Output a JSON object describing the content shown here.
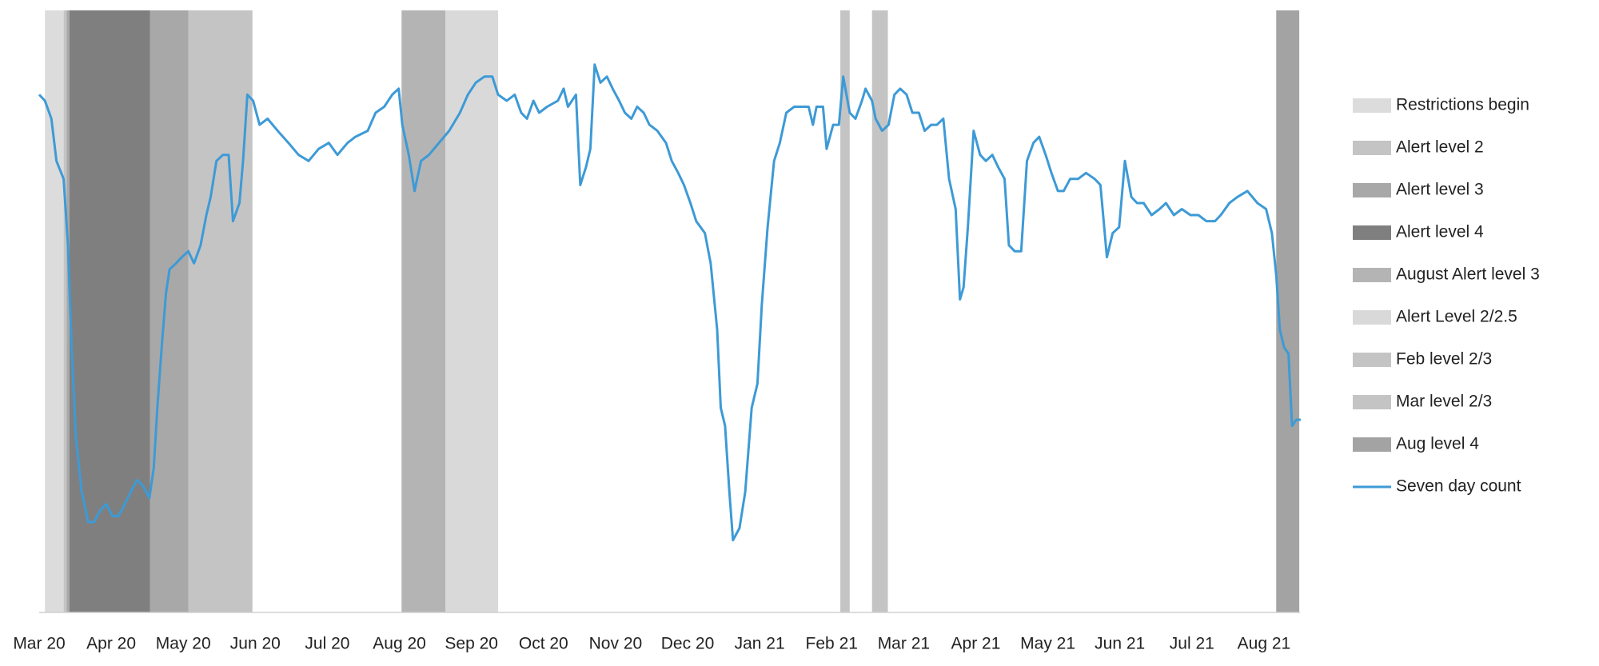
{
  "chart_data": {
    "type": "line",
    "xlim": [
      0,
      17.5
    ],
    "ylim": [
      0,
      100
    ],
    "xticks": [
      {
        "value": 0,
        "label": "Mar 20"
      },
      {
        "value": 1,
        "label": "Apr 20"
      },
      {
        "value": 2,
        "label": "May 20"
      },
      {
        "value": 3,
        "label": "Jun 20"
      },
      {
        "value": 4,
        "label": "Jul 20"
      },
      {
        "value": 5,
        "label": "Aug 20"
      },
      {
        "value": 6,
        "label": "Sep 20"
      },
      {
        "value": 7,
        "label": "Oct 20"
      },
      {
        "value": 8,
        "label": "Nov 20"
      },
      {
        "value": 9,
        "label": "Dec 20"
      },
      {
        "value": 10,
        "label": "Jan 21"
      },
      {
        "value": 11,
        "label": "Feb 21"
      },
      {
        "value": 12,
        "label": "Mar 21"
      },
      {
        "value": 13,
        "label": "Apr 21"
      },
      {
        "value": 14,
        "label": "May 21"
      },
      {
        "value": 15,
        "label": "Jun 21"
      },
      {
        "value": 16,
        "label": "Jul 21"
      },
      {
        "value": 17,
        "label": "Aug 21"
      }
    ],
    "bands": [
      {
        "name": "Restrictions begin",
        "color": "#dcdcdc",
        "spans": [
          [
            0.08,
            0.34
          ]
        ]
      },
      {
        "name": "Alert level 2",
        "color": "#c4c4c4",
        "spans": [
          [
            0.34,
            0.38
          ],
          [
            2.07,
            2.96
          ]
        ]
      },
      {
        "name": "Alert level 3",
        "color": "#a8a8a8",
        "spans": [
          [
            0.38,
            0.42
          ],
          [
            1.54,
            2.07
          ]
        ]
      },
      {
        "name": "Alert level 4",
        "color": "#7f7f7f",
        "spans": [
          [
            0.42,
            1.54
          ]
        ]
      },
      {
        "name": "August Alert level 3",
        "color": "#b4b4b4",
        "spans": [
          [
            5.03,
            5.64
          ]
        ]
      },
      {
        "name": "Alert Level 2/2.5",
        "color": "#d9d9d9",
        "spans": [
          [
            5.64,
            6.37
          ]
        ]
      },
      {
        "name": "Feb level 2/3",
        "color": "#c4c4c4",
        "spans": [
          [
            11.12,
            11.25
          ]
        ]
      },
      {
        "name": "Mar level 2/3",
        "color": "#c4c4c4",
        "spans": [
          [
            11.56,
            11.78
          ]
        ]
      },
      {
        "name": "Aug level 4",
        "color": "#a3a3a3",
        "spans": [
          [
            17.17,
            17.49
          ]
        ]
      }
    ],
    "x": [
      0,
      0.08,
      0.17,
      0.24,
      0.34,
      0.4,
      0.45,
      0.51,
      0.59,
      0.68,
      0.76,
      0.85,
      0.93,
      1.02,
      1.1,
      1.19,
      1.27,
      1.36,
      1.44,
      1.53,
      1.59,
      1.64,
      1.7,
      1.76,
      1.81,
      1.9,
      1.98,
      2.07,
      2.15,
      2.24,
      2.32,
      2.38,
      2.46,
      2.55,
      2.63,
      2.69,
      2.78,
      2.83,
      2.89,
      2.97,
      3.06,
      3.17,
      3.31,
      3.46,
      3.6,
      3.74,
      3.88,
      4.02,
      4.14,
      4.28,
      4.39,
      4.56,
      4.67,
      4.79,
      4.9,
      4.99,
      5.04,
      5.13,
      5.21,
      5.3,
      5.41,
      5.55,
      5.69,
      5.84,
      5.95,
      6.06,
      6.18,
      6.29,
      6.37,
      6.49,
      6.6,
      6.69,
      6.77,
      6.86,
      6.94,
      7.05,
      7.2,
      7.28,
      7.34,
      7.45,
      7.51,
      7.59,
      7.65,
      7.71,
      7.79,
      7.88,
      7.96,
      8.05,
      8.13,
      8.22,
      8.3,
      8.39,
      8.47,
      8.58,
      8.7,
      8.78,
      8.87,
      8.95,
      9.04,
      9.12,
      9.24,
      9.32,
      9.41,
      9.46,
      9.52,
      9.58,
      9.63,
      9.72,
      9.8,
      9.89,
      9.97,
      10.03,
      10.11,
      10.2,
      10.28,
      10.37,
      10.48,
      10.59,
      10.68,
      10.74,
      10.79,
      10.88,
      10.93,
      11.02,
      11.1,
      11.16,
      11.25,
      11.33,
      11.42,
      11.47,
      11.56,
      11.61,
      11.7,
      11.79,
      11.87,
      11.95,
      12.04,
      12.12,
      12.21,
      12.29,
      12.38,
      12.46,
      12.55,
      12.63,
      12.72,
      12.78,
      12.83,
      12.89,
      12.97,
      13.06,
      13.14,
      13.23,
      13.31,
      13.4,
      13.46,
      13.54,
      13.63,
      13.71,
      13.8,
      13.88,
      13.97,
      14.05,
      14.14,
      14.22,
      14.31,
      14.42,
      14.53,
      14.65,
      14.73,
      14.82,
      14.9,
      14.99,
      15.07,
      15.16,
      15.24,
      15.33,
      15.44,
      15.55,
      15.64,
      15.75,
      15.86,
      15.98,
      16.09,
      16.2,
      16.32,
      16.4,
      16.52,
      16.63,
      16.77,
      16.91,
      17.03,
      17.11,
      17.17,
      17.22,
      17.28,
      17.34,
      17.39,
      17.45,
      17.51
    ],
    "series": [
      {
        "name": "Seven day count",
        "color": "#3d9ad6",
        "values": [
          86,
          85,
          82,
          75,
          72,
          61,
          44,
          29,
          20,
          15,
          15,
          17,
          18,
          16,
          16,
          18,
          20,
          22,
          21,
          19,
          24,
          34,
          44,
          53,
          57,
          58,
          59,
          60,
          58,
          61,
          66,
          69,
          75,
          76,
          76,
          65,
          68,
          75,
          86,
          85,
          81,
          82,
          80,
          78,
          76,
          75,
          77,
          78,
          76,
          78,
          79,
          80,
          83,
          84,
          86,
          87,
          81,
          76,
          70,
          75,
          76,
          78,
          80,
          83,
          86,
          88,
          89,
          89,
          86,
          85,
          86,
          83,
          82,
          85,
          83,
          84,
          85,
          87,
          84,
          86,
          71,
          74,
          77,
          91,
          88,
          89,
          87,
          85,
          83,
          82,
          84,
          83,
          81,
          80,
          78,
          75,
          73,
          71,
          68,
          65,
          63,
          58,
          47,
          34,
          31,
          20,
          12,
          14,
          20,
          34,
          38,
          51,
          64,
          75,
          78,
          83,
          84,
          84,
          84,
          81,
          84,
          84,
          77,
          81,
          81,
          89,
          83,
          82,
          85,
          87,
          85,
          82,
          80,
          81,
          86,
          87,
          86,
          83,
          83,
          80,
          81,
          81,
          82,
          72,
          67,
          52,
          54,
          64,
          80,
          76,
          75,
          76,
          74,
          72,
          61,
          60,
          60,
          75,
          78,
          79,
          76,
          73,
          70,
          70,
          72,
          72,
          73,
          72,
          71,
          59,
          63,
          64,
          75,
          69,
          68,
          68,
          66,
          67,
          68,
          66,
          67,
          66,
          66,
          65,
          65,
          66,
          68,
          69,
          70,
          68,
          67,
          63,
          56,
          47,
          44,
          43,
          31,
          32,
          32
        ]
      }
    ]
  }
}
